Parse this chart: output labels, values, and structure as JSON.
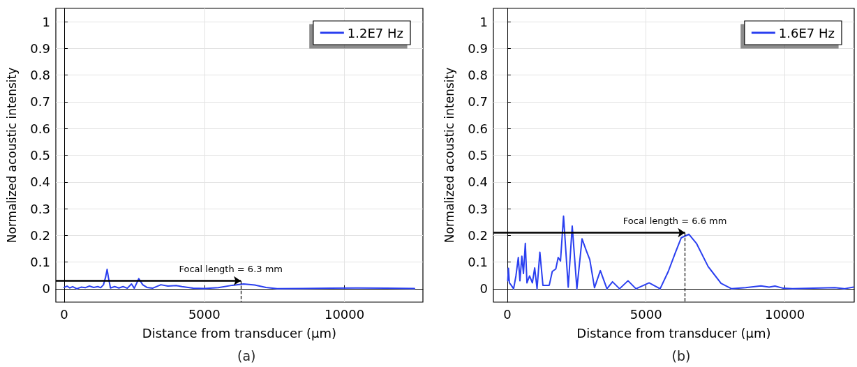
{
  "chart_data": [
    {
      "type": "line",
      "title": "(a)",
      "xlabel": "Distance from transducer (μm)",
      "ylabel": "Normalized acoustic intensity",
      "x": [
        0,
        100,
        200,
        300,
        450,
        600,
        750,
        900,
        1050,
        1200,
        1300,
        1400,
        1480,
        1530,
        1580,
        1650,
        1800,
        1950,
        2100,
        2250,
        2400,
        2500,
        2660,
        2800,
        2950,
        3150,
        3450,
        3700,
        4000,
        4200,
        4600,
        5000,
        5500,
        6000,
        6400,
        6800,
        7200,
        7600,
        8500,
        9500,
        10500,
        11500,
        12500
      ],
      "series": [
        {
          "name": "1.2E7 Hz",
          "color": "#2a3ff0",
          "values": [
            0.005,
            0.01,
            0.003,
            0.008,
            0.0,
            0.006,
            0.004,
            0.01,
            0.005,
            0.008,
            0.004,
            0.015,
            0.045,
            0.073,
            0.04,
            0.003,
            0.008,
            0.003,
            0.008,
            0.002,
            0.018,
            0.002,
            0.038,
            0.015,
            0.005,
            0.002,
            0.015,
            0.01,
            0.012,
            0.008,
            0.002,
            0.001,
            0.004,
            0.013,
            0.018,
            0.014,
            0.005,
            0.0,
            0.001,
            0.002,
            0.003,
            0.002,
            0.001
          ]
        }
      ],
      "xlim": [
        -300,
        12800
      ],
      "xticks": [
        0,
        5000,
        10000
      ],
      "ylim": [
        -0.05,
        1.05
      ],
      "yticks": [
        0,
        0.1,
        0.2,
        0.3,
        0.4,
        0.5,
        0.6,
        0.7,
        0.8,
        0.9,
        1
      ],
      "grid": true,
      "legend": "top right",
      "marker": "none",
      "line_style": "solid",
      "annotations": [
        {
          "text": "Focal length = 6.3 mm",
          "x": 6300,
          "y": 0.03
        }
      ]
    },
    {
      "type": "line",
      "title": "(b)",
      "xlabel": "Distance from transducer (μm)",
      "ylabel": "Normalized acoustic intensity",
      "x": [
        17,
        42,
        76,
        143,
        228,
        312,
        397,
        456,
        524,
        583,
        650,
        709,
        802,
        904,
        988,
        1073,
        1174,
        1284,
        1512,
        1622,
        1748,
        1833,
        1917,
        2027,
        2196,
        2340,
        2508,
        2694,
        2846,
        2973,
        3142,
        3353,
        3590,
        3792,
        4045,
        4350,
        4637,
        5110,
        5507,
        5802,
        6056,
        6267,
        6394,
        6546,
        6816,
        7238,
        7703,
        8083,
        8590,
        9139,
        9435,
        9646,
        9941,
        10279,
        11800,
        12140,
        12475
      ],
      "series": [
        {
          "name": "1.6E7 Hz",
          "color": "#2a3ff0",
          "values": [
            0.03,
            0.077,
            0.022,
            0.013,
            0,
            0.048,
            0.117,
            0.03,
            0.122,
            0.057,
            0.17,
            0.022,
            0.048,
            0.022,
            0.078,
            0,
            0.137,
            0.013,
            0.013,
            0.065,
            0.074,
            0.117,
            0.104,
            0.272,
            0.006,
            0.235,
            0,
            0.187,
            0.143,
            0.109,
            0.004,
            0.068,
            0,
            0.026,
            0,
            0.03,
            0,
            0.022,
            0,
            0.065,
            0.135,
            0.191,
            0.197,
            0.204,
            0.17,
            0.083,
            0.02,
            0,
            0.004,
            0.011,
            0.006,
            0.01,
            0.002,
            0,
            0.004,
            0,
            0.006
          ]
        }
      ],
      "xlim": [
        -500,
        12500
      ],
      "xticks": [
        0,
        5000,
        10000
      ],
      "ylim": [
        -0.05,
        1.05
      ],
      "yticks": [
        0,
        0.1,
        0.2,
        0.3,
        0.4,
        0.5,
        0.6,
        0.7,
        0.8,
        0.9,
        1
      ],
      "grid": true,
      "legend": "top right",
      "marker": "none",
      "line_style": "solid",
      "annotations": [
        {
          "text": "Focal length = 6.6 mm",
          "x": 6400,
          "y": 0.21
        }
      ]
    }
  ]
}
